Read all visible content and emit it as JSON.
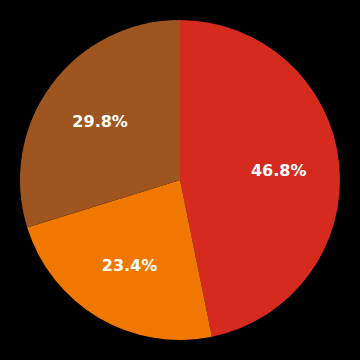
{
  "chart_data": {
    "type": "pie",
    "values": [
      46.8,
      23.4,
      29.8
    ],
    "value_labels": [
      "46.8%",
      "23.4%",
      "29.8%"
    ],
    "colors": [
      "#d42b1e",
      "#f07800",
      "#9e5520"
    ],
    "data_labels": true
  }
}
